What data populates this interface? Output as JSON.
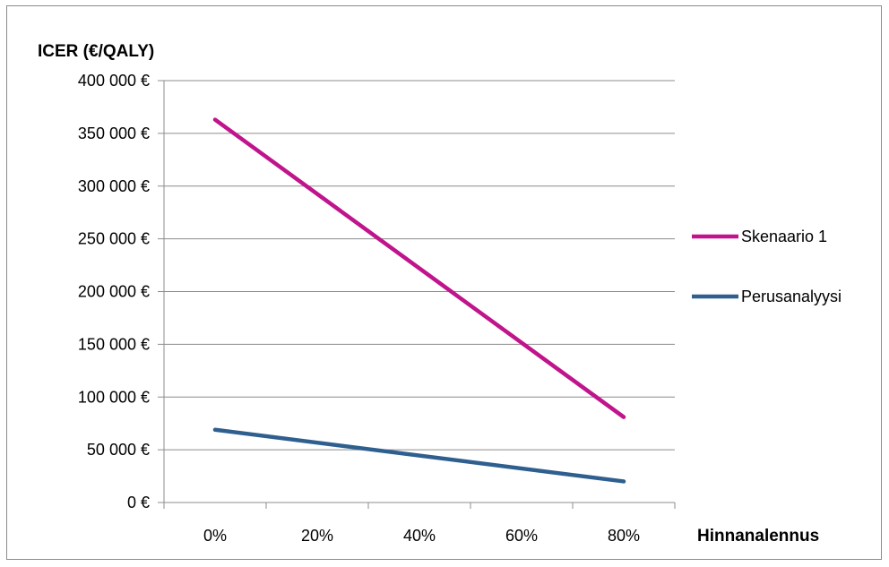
{
  "chart_data": {
    "type": "line",
    "title": "",
    "ylabel": "ICER (€/QALY)",
    "xlabel": "Hinnanalennus",
    "categories": [
      "0%",
      "20%",
      "40%",
      "60%",
      "80%"
    ],
    "ylim": [
      0,
      400000
    ],
    "yticks": [
      0,
      50000,
      100000,
      150000,
      200000,
      250000,
      300000,
      350000,
      400000
    ],
    "ytick_labels": [
      "0 €",
      "50 000 €",
      "100 000 €",
      "150 000 €",
      "200 000 €",
      "250 000 €",
      "300 000 €",
      "350 000 €",
      "400 000 €"
    ],
    "grid": true,
    "legend_position": "right",
    "series": [
      {
        "name": "Skenaario 1",
        "color": "#c0148c",
        "values": [
          null,
          null,
          null,
          null,
          null
        ],
        "start": 363000,
        "end": 81000
      },
      {
        "name": "Perusanalyysi",
        "color": "#2e5f8f",
        "values": [
          null,
          null,
          null,
          null,
          null
        ],
        "start": 69000,
        "end": 20000
      }
    ]
  }
}
